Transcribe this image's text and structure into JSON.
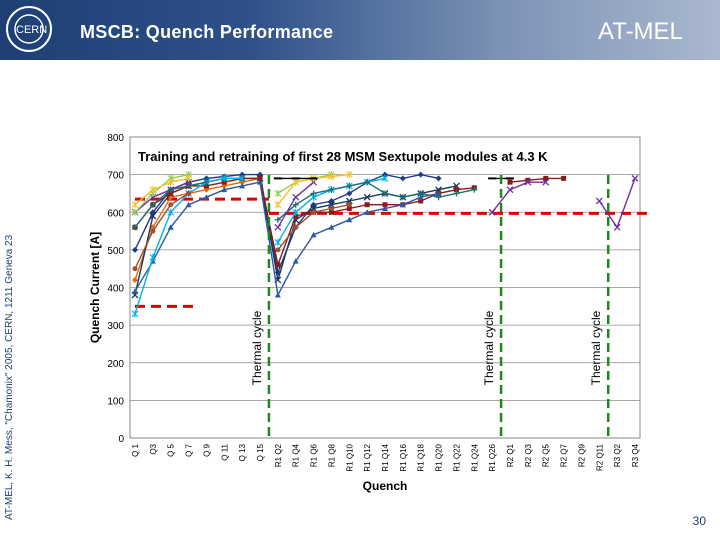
{
  "header": {
    "title": "MSCB: Quench Performance",
    "department": "AT-MEL",
    "bg_color": "#1d3f74"
  },
  "sidebar": {
    "citation": "AT-MEL, K. H. Mess, \"Chamonix\" 2005, CERN, 1211 Geneva 23"
  },
  "footer": {
    "page_number": "30"
  },
  "chart_data": {
    "type": "line",
    "title": "Training and retraining of first 28 MSM Sextupole modules at 4.3 K",
    "xlabel": "Quench",
    "ylabel": "Quench Current [A]",
    "ylim": [
      0,
      800
    ],
    "yticks": [
      0,
      100,
      200,
      300,
      400,
      500,
      600,
      700,
      800
    ],
    "categories": [
      "Q 1",
      "Q3",
      "Q 5",
      "Q 7",
      "Q 9",
      "Q 11",
      "Q 13",
      "Q 15",
      "R1 Q2",
      "R1 Q4",
      "R1 Q6",
      "R1 Q8",
      "R1 Q10",
      "R1 Q12",
      "R1 Q14",
      "R1 Q16",
      "R1 Q18",
      "R1 Q20",
      "R1 Q22",
      "R1 Q24",
      "R1 Q26",
      "R2 Q1",
      "R2 Q3",
      "R2 Q5",
      "R2 Q7",
      "R2 Q9",
      "R2 Q11",
      "R3 Q2",
      "R3 Q4"
    ],
    "thermal_cycle_label": "Thermal cycle",
    "thermal_cycles_at": [
      7.5,
      20.5,
      26.5
    ],
    "reference_lines": [
      {
        "name": "nominal",
        "color": "#e00000",
        "segments": [
          [
            0,
            3.5,
            350
          ],
          [
            0,
            7.5,
            635
          ],
          [
            7.5,
            29,
            597
          ]
        ]
      }
    ],
    "grid": "horizontal",
    "series": [
      {
        "color": "#e36c09",
        "marker": "diamond",
        "values": [
          420,
          560,
          640,
          650,
          660,
          670,
          680,
          690,
          null,
          null,
          null,
          null,
          null,
          null,
          null,
          null,
          null,
          null,
          null,
          null,
          null,
          null,
          null,
          null,
          null,
          null,
          null,
          null,
          null
        ]
      },
      {
        "color": "#1f3c88",
        "marker": "diamond",
        "values": [
          500,
          600,
          660,
          680,
          690,
          695,
          700,
          700,
          440,
          560,
          620,
          630,
          650,
          680,
          700,
          690,
          700,
          690,
          null,
          null,
          null,
          null,
          null,
          null,
          null,
          null,
          null,
          null,
          null
        ]
      },
      {
        "color": "#17375e",
        "marker": "x",
        "values": [
          380,
          590,
          650,
          670,
          680,
          690,
          690,
          690,
          420,
          580,
          610,
          620,
          630,
          640,
          650,
          640,
          650,
          660,
          670,
          null,
          null,
          null,
          null,
          null,
          null,
          null,
          null,
          null,
          null
        ]
      },
      {
        "color": "#8b1a1a",
        "marker": "square",
        "values": [
          560,
          620,
          650,
          670,
          670,
          680,
          690,
          690,
          460,
          590,
          600,
          600,
          610,
          620,
          620,
          620,
          630,
          650,
          660,
          665,
          null,
          680,
          685,
          690,
          690,
          null,
          null,
          null,
          null
        ]
      },
      {
        "color": "#7030a0",
        "marker": "x",
        "values": [
          600,
          640,
          660,
          680,
          null,
          null,
          null,
          null,
          560,
          640,
          680,
          null,
          null,
          null,
          null,
          null,
          null,
          null,
          null,
          null,
          600,
          660,
          680,
          680,
          null,
          null,
          630,
          560,
          690
        ]
      },
      {
        "color": "#2c5aa0",
        "marker": "triangle",
        "values": [
          390,
          470,
          560,
          620,
          640,
          660,
          670,
          680,
          380,
          470,
          540,
          560,
          580,
          600,
          610,
          620,
          640,
          650,
          null,
          null,
          null,
          null,
          null,
          null,
          null,
          null,
          null,
          null,
          null
        ]
      },
      {
        "color": "#00b0f0",
        "marker": "star",
        "values": [
          330,
          480,
          600,
          650,
          680,
          690,
          690,
          null,
          520,
          600,
          640,
          660,
          670,
          680,
          690,
          null,
          null,
          null,
          null,
          null,
          null,
          null,
          null,
          null,
          null,
          null,
          null,
          null,
          null
        ]
      },
      {
        "color": "#92d050",
        "marker": "star",
        "values": [
          600,
          650,
          690,
          700,
          null,
          null,
          null,
          null,
          650,
          680,
          690,
          700,
          null,
          null,
          null,
          null,
          null,
          null,
          null,
          null,
          null,
          null,
          null,
          null,
          null,
          null,
          null,
          null,
          null
        ]
      },
      {
        "color": "#1f6f6f",
        "marker": "plus",
        "values": [
          560,
          620,
          660,
          670,
          680,
          null,
          null,
          null,
          580,
          620,
          650,
          660,
          670,
          680,
          650,
          640,
          650,
          640,
          650,
          660,
          null,
          null,
          null,
          null,
          null,
          null,
          null,
          null,
          null
        ]
      },
      {
        "color": "#a05030",
        "marker": "circle",
        "values": [
          450,
          550,
          620,
          650,
          null,
          null,
          null,
          null,
          500,
          560,
          600,
          610,
          620,
          null,
          null,
          null,
          null,
          null,
          null,
          null,
          null,
          null,
          null,
          null,
          null,
          null,
          null,
          null,
          null
        ]
      },
      {
        "color": "#f2c12e",
        "marker": "star",
        "values": [
          620,
          660,
          680,
          690,
          null,
          null,
          null,
          null,
          620,
          680,
          690,
          695,
          700,
          null,
          null,
          null,
          null,
          null,
          null,
          null,
          null,
          null,
          null,
          null,
          null,
          null,
          null,
          null,
          null
        ]
      },
      {
        "color": "#000000",
        "marker": "dash",
        "values": [
          null,
          null,
          null,
          null,
          null,
          null,
          null,
          null,
          690,
          690,
          690,
          null,
          null,
          null,
          null,
          null,
          null,
          null,
          null,
          null,
          690,
          690,
          null,
          null,
          null,
          null,
          null,
          null,
          null
        ]
      }
    ]
  }
}
